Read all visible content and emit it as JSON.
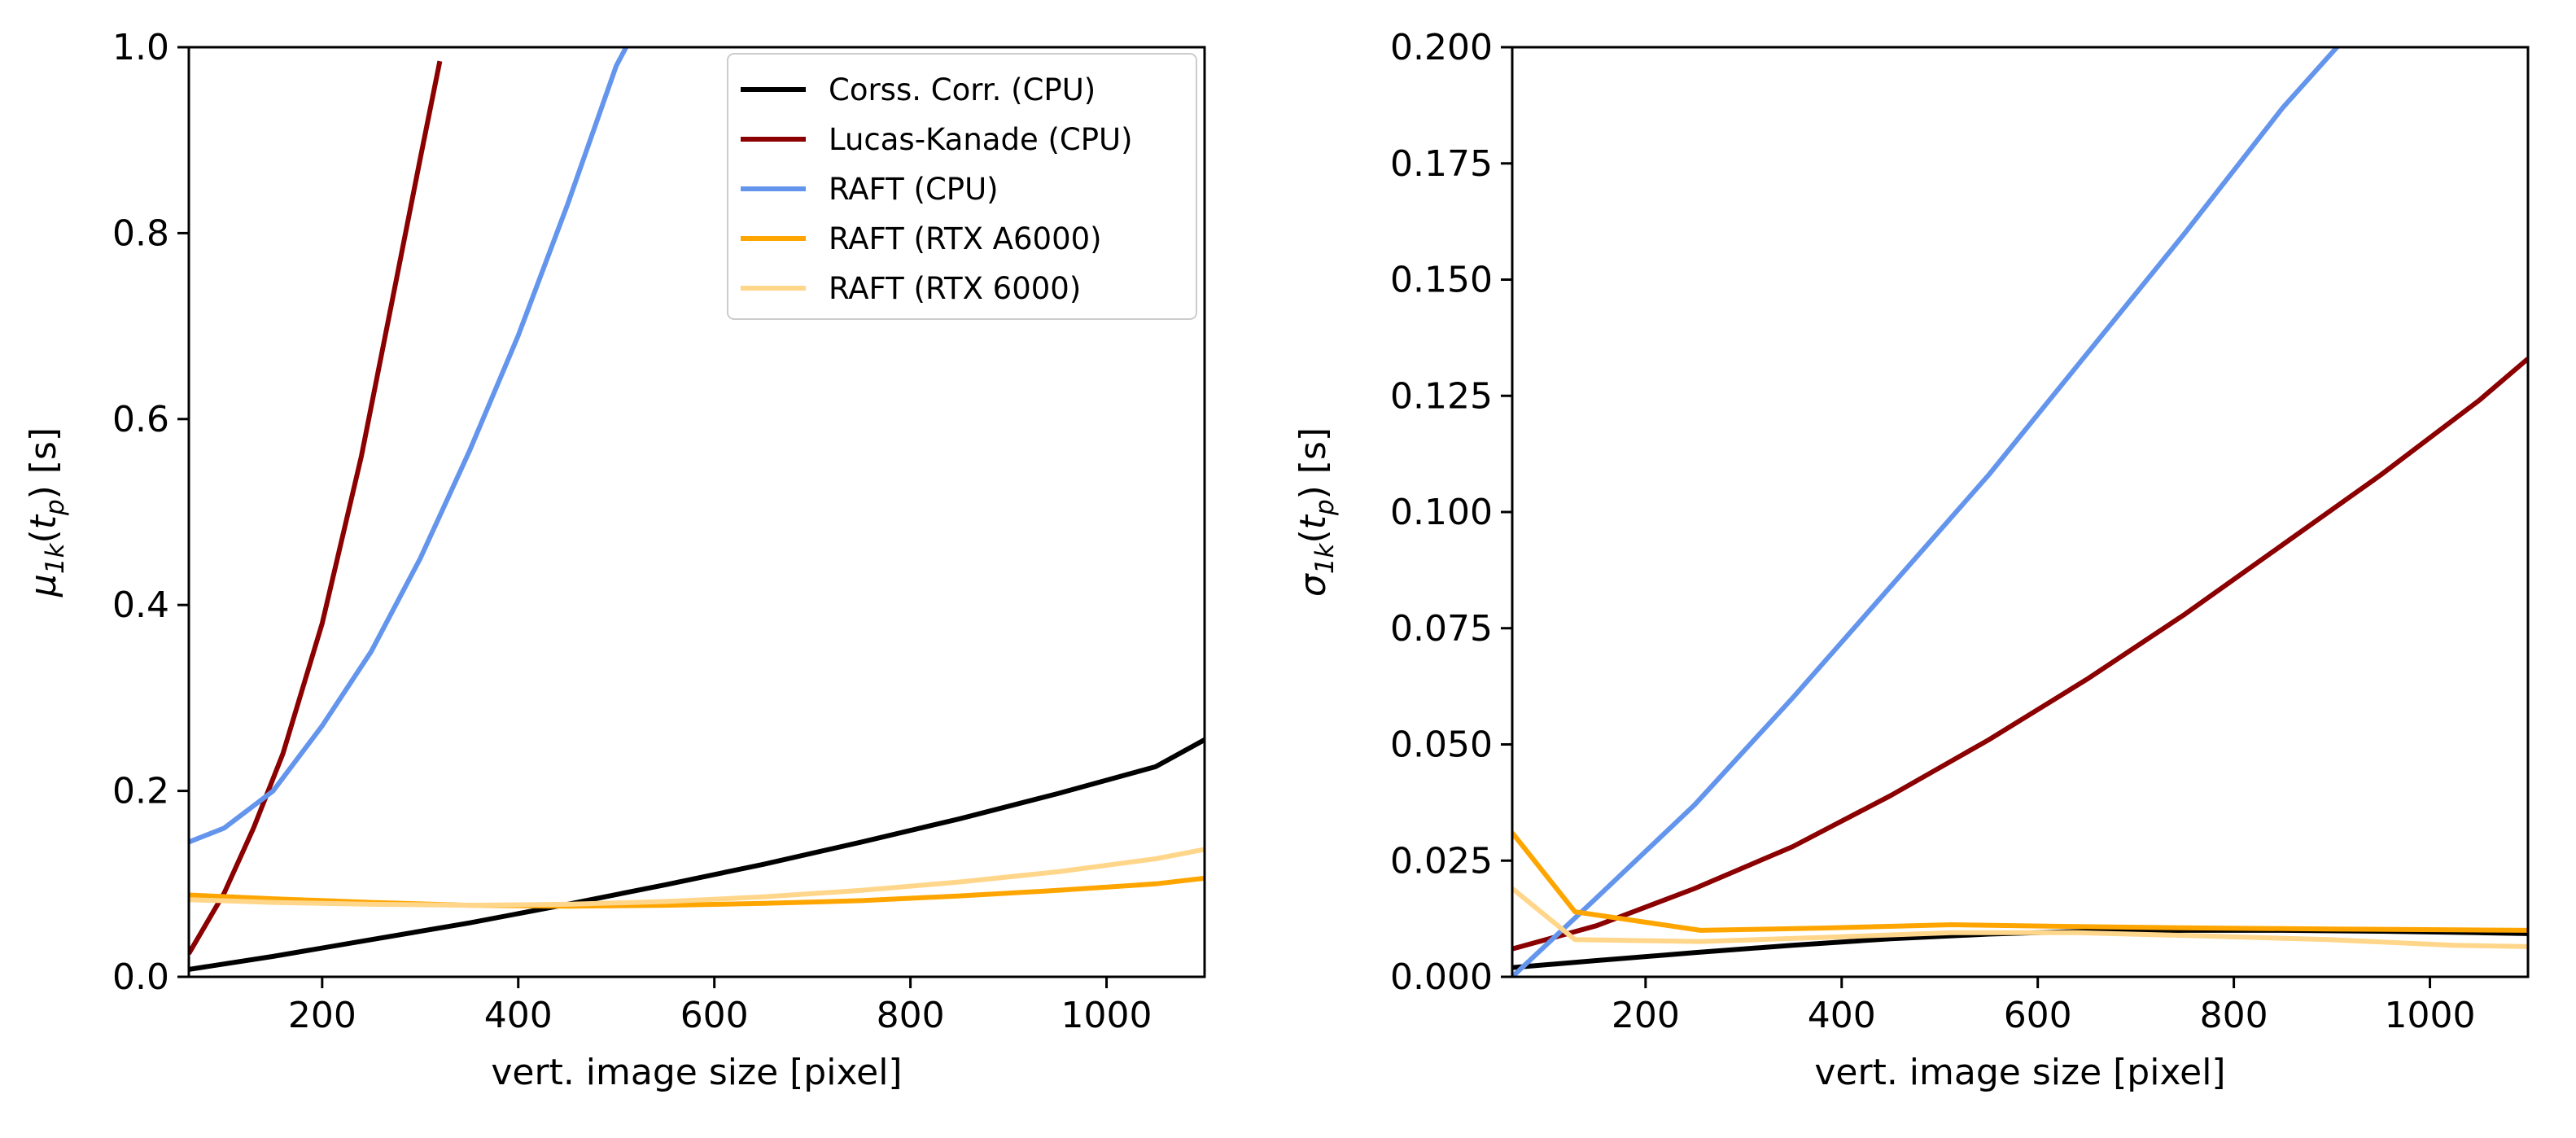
{
  "chart_data": [
    {
      "type": "line",
      "xlabel": "vert. image size [pixel]",
      "ylabel": {
        "base": "μ",
        "sub": "1k",
        "arg": "t",
        "argsub": "p",
        "unit": "[s]"
      },
      "xlim": [
        64,
        1100
      ],
      "ylim": [
        0,
        1.0
      ],
      "xticks": [
        200,
        400,
        600,
        800,
        1000
      ],
      "yticks": [
        0.0,
        0.2,
        0.4,
        0.6,
        0.8,
        1.0
      ],
      "ytick_labels": [
        "0.0",
        "0.2",
        "0.4",
        "0.6",
        "0.8",
        "1.0"
      ],
      "legend": {
        "position": "top-right"
      },
      "series": [
        {
          "name": "Corss. Corr. (CPU)",
          "color": "#000000",
          "x": [
            64,
            150,
            250,
            350,
            450,
            550,
            650,
            750,
            850,
            950,
            1050,
            1100
          ],
          "y": [
            0.008,
            0.022,
            0.04,
            0.058,
            0.078,
            0.099,
            0.121,
            0.145,
            0.17,
            0.197,
            0.226,
            0.255
          ]
        },
        {
          "name": "Lucas-Kanade (CPU)",
          "color": "#8b0000",
          "x": [
            64,
            100,
            130,
            160,
            200,
            240,
            270,
            300,
            320
          ],
          "y": [
            0.025,
            0.09,
            0.16,
            0.24,
            0.38,
            0.56,
            0.72,
            0.88,
            0.985
          ]
        },
        {
          "name": "RAFT (CPU)",
          "color": "#6495ed",
          "x": [
            64,
            100,
            150,
            200,
            250,
            300,
            350,
            400,
            450,
            500,
            510
          ],
          "y": [
            0.145,
            0.16,
            0.2,
            0.27,
            0.35,
            0.45,
            0.565,
            0.69,
            0.83,
            0.98,
            1.0
          ]
        },
        {
          "name": "RAFT (RTX A6000)",
          "color": "#ffa500",
          "x": [
            64,
            150,
            250,
            350,
            450,
            550,
            650,
            750,
            850,
            950,
            1050,
            1100
          ],
          "y": [
            0.088,
            0.084,
            0.08,
            0.077,
            0.076,
            0.077,
            0.079,
            0.082,
            0.087,
            0.093,
            0.1,
            0.106
          ]
        },
        {
          "name": "RAFT (RTX 6000)",
          "color": "#ffd68a",
          "x": [
            64,
            150,
            250,
            350,
            450,
            550,
            650,
            750,
            850,
            950,
            1050,
            1100
          ],
          "y": [
            0.083,
            0.08,
            0.078,
            0.077,
            0.078,
            0.081,
            0.086,
            0.093,
            0.102,
            0.113,
            0.127,
            0.137
          ]
        }
      ]
    },
    {
      "type": "line",
      "xlabel": "vert. image size [pixel]",
      "ylabel": {
        "base": "σ",
        "sub": "1k",
        "arg": "t",
        "argsub": "p",
        "unit": "[s]"
      },
      "xlim": [
        64,
        1100
      ],
      "ylim": [
        0,
        0.2
      ],
      "xticks": [
        200,
        400,
        600,
        800,
        1000
      ],
      "yticks": [
        0.0,
        0.025,
        0.05,
        0.075,
        0.1,
        0.125,
        0.15,
        0.175,
        0.2
      ],
      "ytick_labels": [
        "0.000",
        "0.025",
        "0.050",
        "0.075",
        "0.100",
        "0.125",
        "0.150",
        "0.175",
        "0.200"
      ],
      "series": [
        {
          "name": "Corss. Corr. (CPU)",
          "color": "#000000",
          "x": [
            64,
            150,
            250,
            350,
            450,
            550,
            650,
            750,
            850,
            950,
            1050,
            1100
          ],
          "y": [
            0.002,
            0.0035,
            0.0052,
            0.0068,
            0.0082,
            0.0092,
            0.0098,
            0.01,
            0.01,
            0.0098,
            0.0095,
            0.0093
          ]
        },
        {
          "name": "Lucas-Kanade (CPU)",
          "color": "#8b0000",
          "x": [
            64,
            150,
            250,
            350,
            450,
            550,
            650,
            750,
            850,
            950,
            1050,
            1100
          ],
          "y": [
            0.006,
            0.011,
            0.019,
            0.028,
            0.039,
            0.051,
            0.064,
            0.078,
            0.093,
            0.108,
            0.124,
            0.133
          ]
        },
        {
          "name": "RAFT (CPU)",
          "color": "#6495ed",
          "x": [
            64,
            150,
            250,
            350,
            450,
            550,
            650,
            750,
            850,
            920
          ],
          "y": [
            0.0,
            0.017,
            0.037,
            0.06,
            0.084,
            0.108,
            0.134,
            0.16,
            0.187,
            0.2035
          ]
        },
        {
          "name": "RAFT (RTX A6000)",
          "color": "#ffa500",
          "x": [
            64,
            128,
            192,
            256,
            384,
            512,
            640,
            768,
            896,
            1024,
            1100
          ],
          "y": [
            0.031,
            0.014,
            0.012,
            0.01,
            0.0105,
            0.0112,
            0.0108,
            0.0105,
            0.0103,
            0.0101,
            0.01
          ]
        },
        {
          "name": "RAFT (RTX 6000)",
          "color": "#ffd68a",
          "x": [
            64,
            128,
            192,
            256,
            384,
            512,
            640,
            768,
            896,
            1024,
            1100
          ],
          "y": [
            0.019,
            0.008,
            0.0078,
            0.0076,
            0.0085,
            0.0095,
            0.0095,
            0.0088,
            0.008,
            0.0068,
            0.0065
          ]
        }
      ]
    }
  ]
}
